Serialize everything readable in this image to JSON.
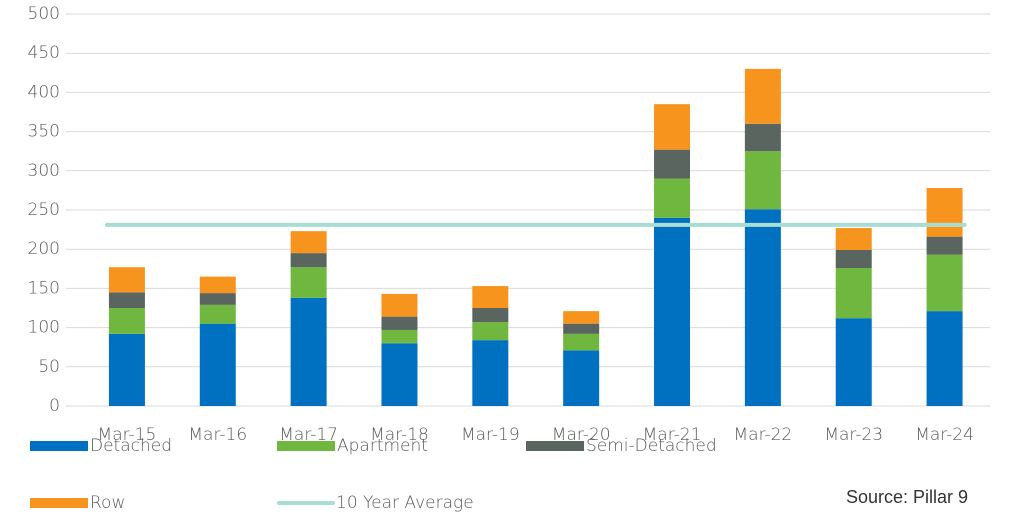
{
  "chart_data": {
    "type": "stacked_bar",
    "categories": [
      "Mar-15",
      "Mar-16",
      "Mar-17",
      "Mar-18",
      "Mar-19",
      "Mar-20",
      "Mar-21",
      "Mar-22",
      "Mar-23",
      "Mar-24"
    ],
    "series": [
      {
        "name": "Detached",
        "color": "#0070c0",
        "values": [
          92,
          105,
          138,
          80,
          84,
          71,
          240,
          251,
          112,
          121
        ]
      },
      {
        "name": "Apartment",
        "color": "#70b73f",
        "values": [
          33,
          24,
          39,
          17,
          23,
          21,
          50,
          74,
          64,
          72
        ]
      },
      {
        "name": "Semi-Detached",
        "color": "#5a6560",
        "values": [
          20,
          15,
          18,
          17,
          18,
          13,
          37,
          35,
          23,
          23
        ]
      },
      {
        "name": "Row",
        "color": "#f7941d",
        "values": [
          32,
          21,
          28,
          29,
          28,
          16,
          58,
          70,
          28,
          62
        ]
      }
    ],
    "average": {
      "name": "10 Year Average",
      "color": "#a8ddd4",
      "value": 231
    },
    "ylim": [
      0,
      500
    ],
    "yticks": [
      0,
      50,
      100,
      150,
      200,
      250,
      300,
      350,
      400,
      450,
      500
    ],
    "grid": true,
    "annotation": "Source: Pillar 9"
  }
}
